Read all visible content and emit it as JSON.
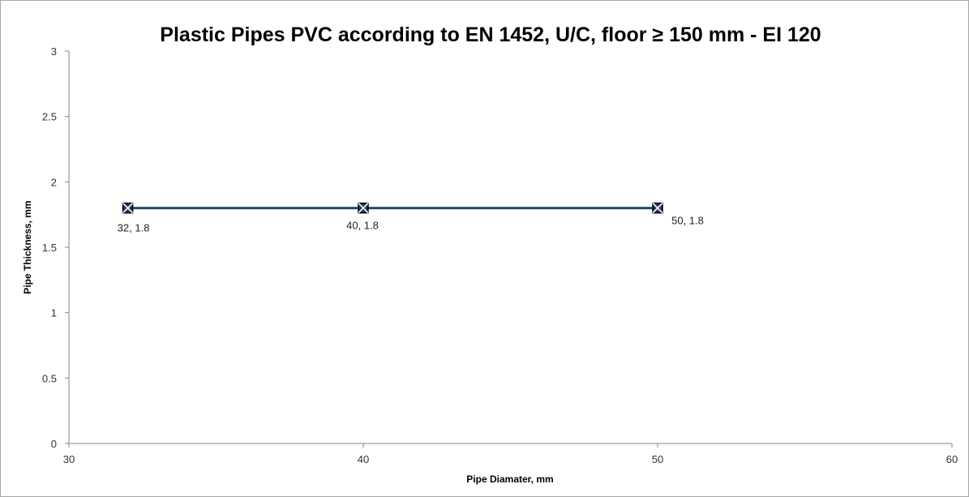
{
  "chart_data": {
    "type": "scatter",
    "title": "Plastic Pipes PVC according to EN 1452, U/C, floor ≥ 150 mm -  EI 120",
    "xlabel": "Pipe Diamater, mm",
    "ylabel": "Pipe Thickness, mm",
    "xlim": [
      30,
      60
    ],
    "ylim": [
      0,
      3
    ],
    "x_ticks": [
      30,
      40,
      50,
      60
    ],
    "y_ticks": [
      0,
      0.5,
      1,
      1.5,
      2,
      2.5,
      3
    ],
    "x_tick_labels": [
      "30",
      "40",
      "50",
      "60"
    ],
    "y_tick_labels": [
      "0",
      "0.5",
      "1",
      "1.5",
      "2",
      "2.5",
      "3"
    ],
    "grid": false,
    "legend": "none",
    "series": [
      {
        "x": [
          32,
          40,
          50
        ],
        "y": [
          1.8,
          1.8,
          1.8
        ],
        "data_labels": [
          "32, 1.8",
          "40, 1.8",
          "50, 1.8"
        ],
        "line_color": "#1f497d",
        "marker": "square-x",
        "marker_color": "#000000"
      }
    ],
    "colors": {
      "axis": "#868686",
      "line": "#1f497d",
      "marker": "#000000"
    }
  }
}
